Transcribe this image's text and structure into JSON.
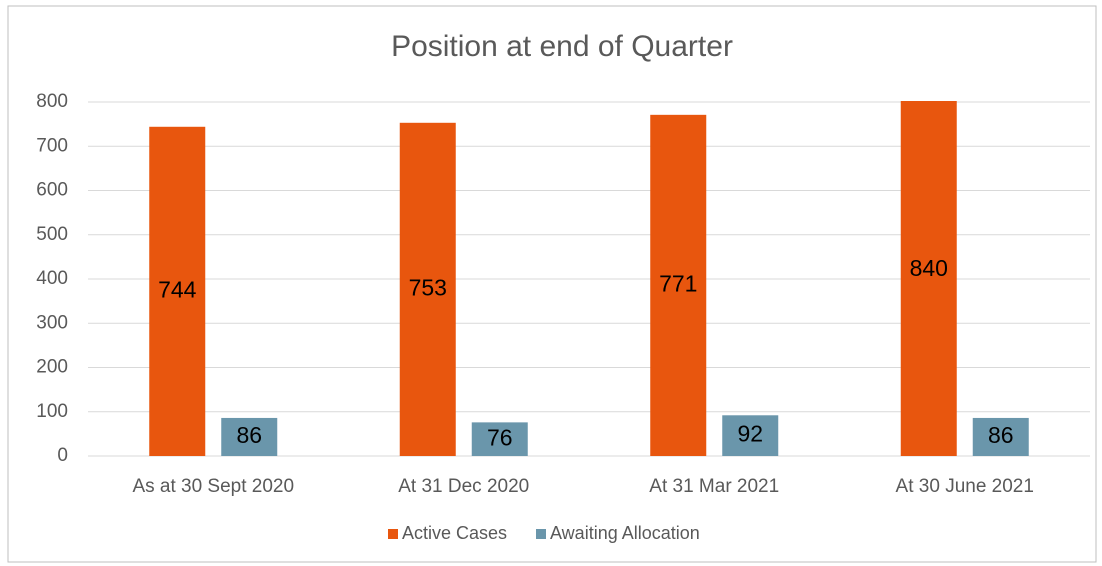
{
  "chart_data": {
    "type": "bar",
    "title": "Position at end of Quarter",
    "categories": [
      "As at 30 Sept 2020",
      "At 31 Dec 2020",
      "At 31 Mar 2021",
      "At 30 June 2021"
    ],
    "series": [
      {
        "name": "Active Cases",
        "color": "#e8560e",
        "values": [
          744,
          753,
          771,
          840
        ]
      },
      {
        "name": "Awaiting Allocation",
        "color": "#6a96ab",
        "values": [
          86,
          76,
          92,
          86
        ]
      }
    ],
    "ylim": [
      0,
      800
    ],
    "yticks": [
      0,
      100,
      200,
      300,
      400,
      500,
      600,
      700,
      800
    ],
    "grid": true,
    "legend": "bottom"
  }
}
